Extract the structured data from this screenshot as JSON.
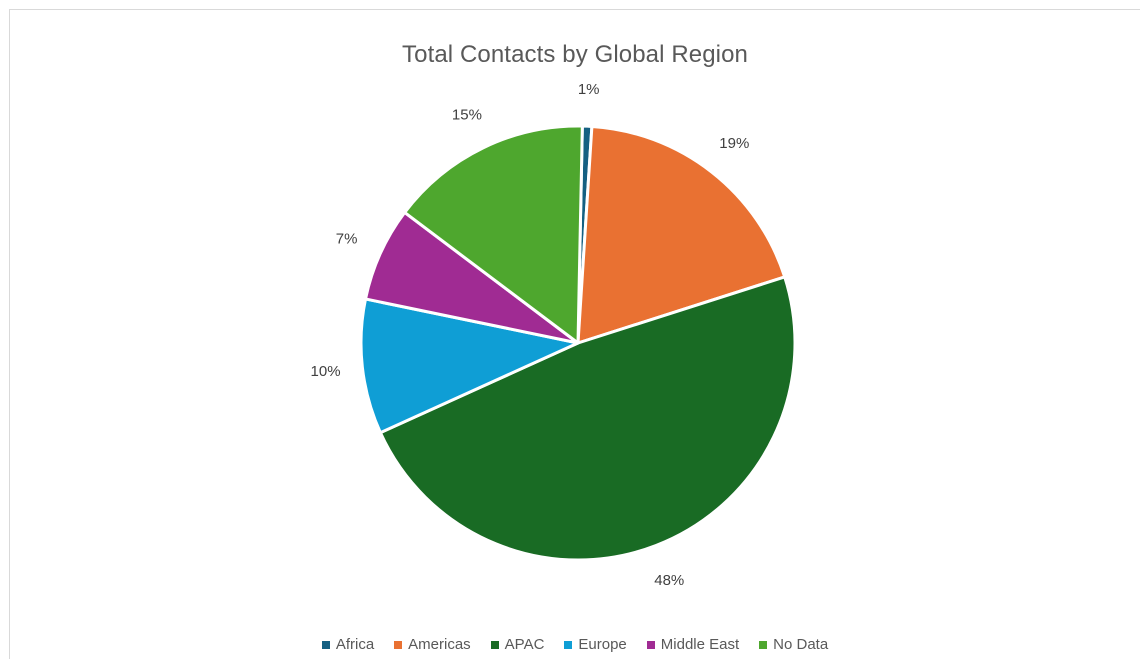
{
  "chart_data": {
    "type": "pie",
    "title": "Total Contacts by Global Region",
    "categories": [
      "Africa",
      "Americas",
      "APAC",
      "Europe",
      "Middle East",
      "No Data"
    ],
    "values": [
      0.7,
      19,
      48,
      10,
      7,
      15
    ],
    "labels": [
      "1%",
      "19%",
      "48%",
      "10%",
      "7%",
      "15%"
    ],
    "colors": [
      "#156082",
      "#E97132",
      "#196B24",
      "#0F9ED5",
      "#A02B93",
      "#4EA72E"
    ],
    "legend_position": "bottom"
  }
}
